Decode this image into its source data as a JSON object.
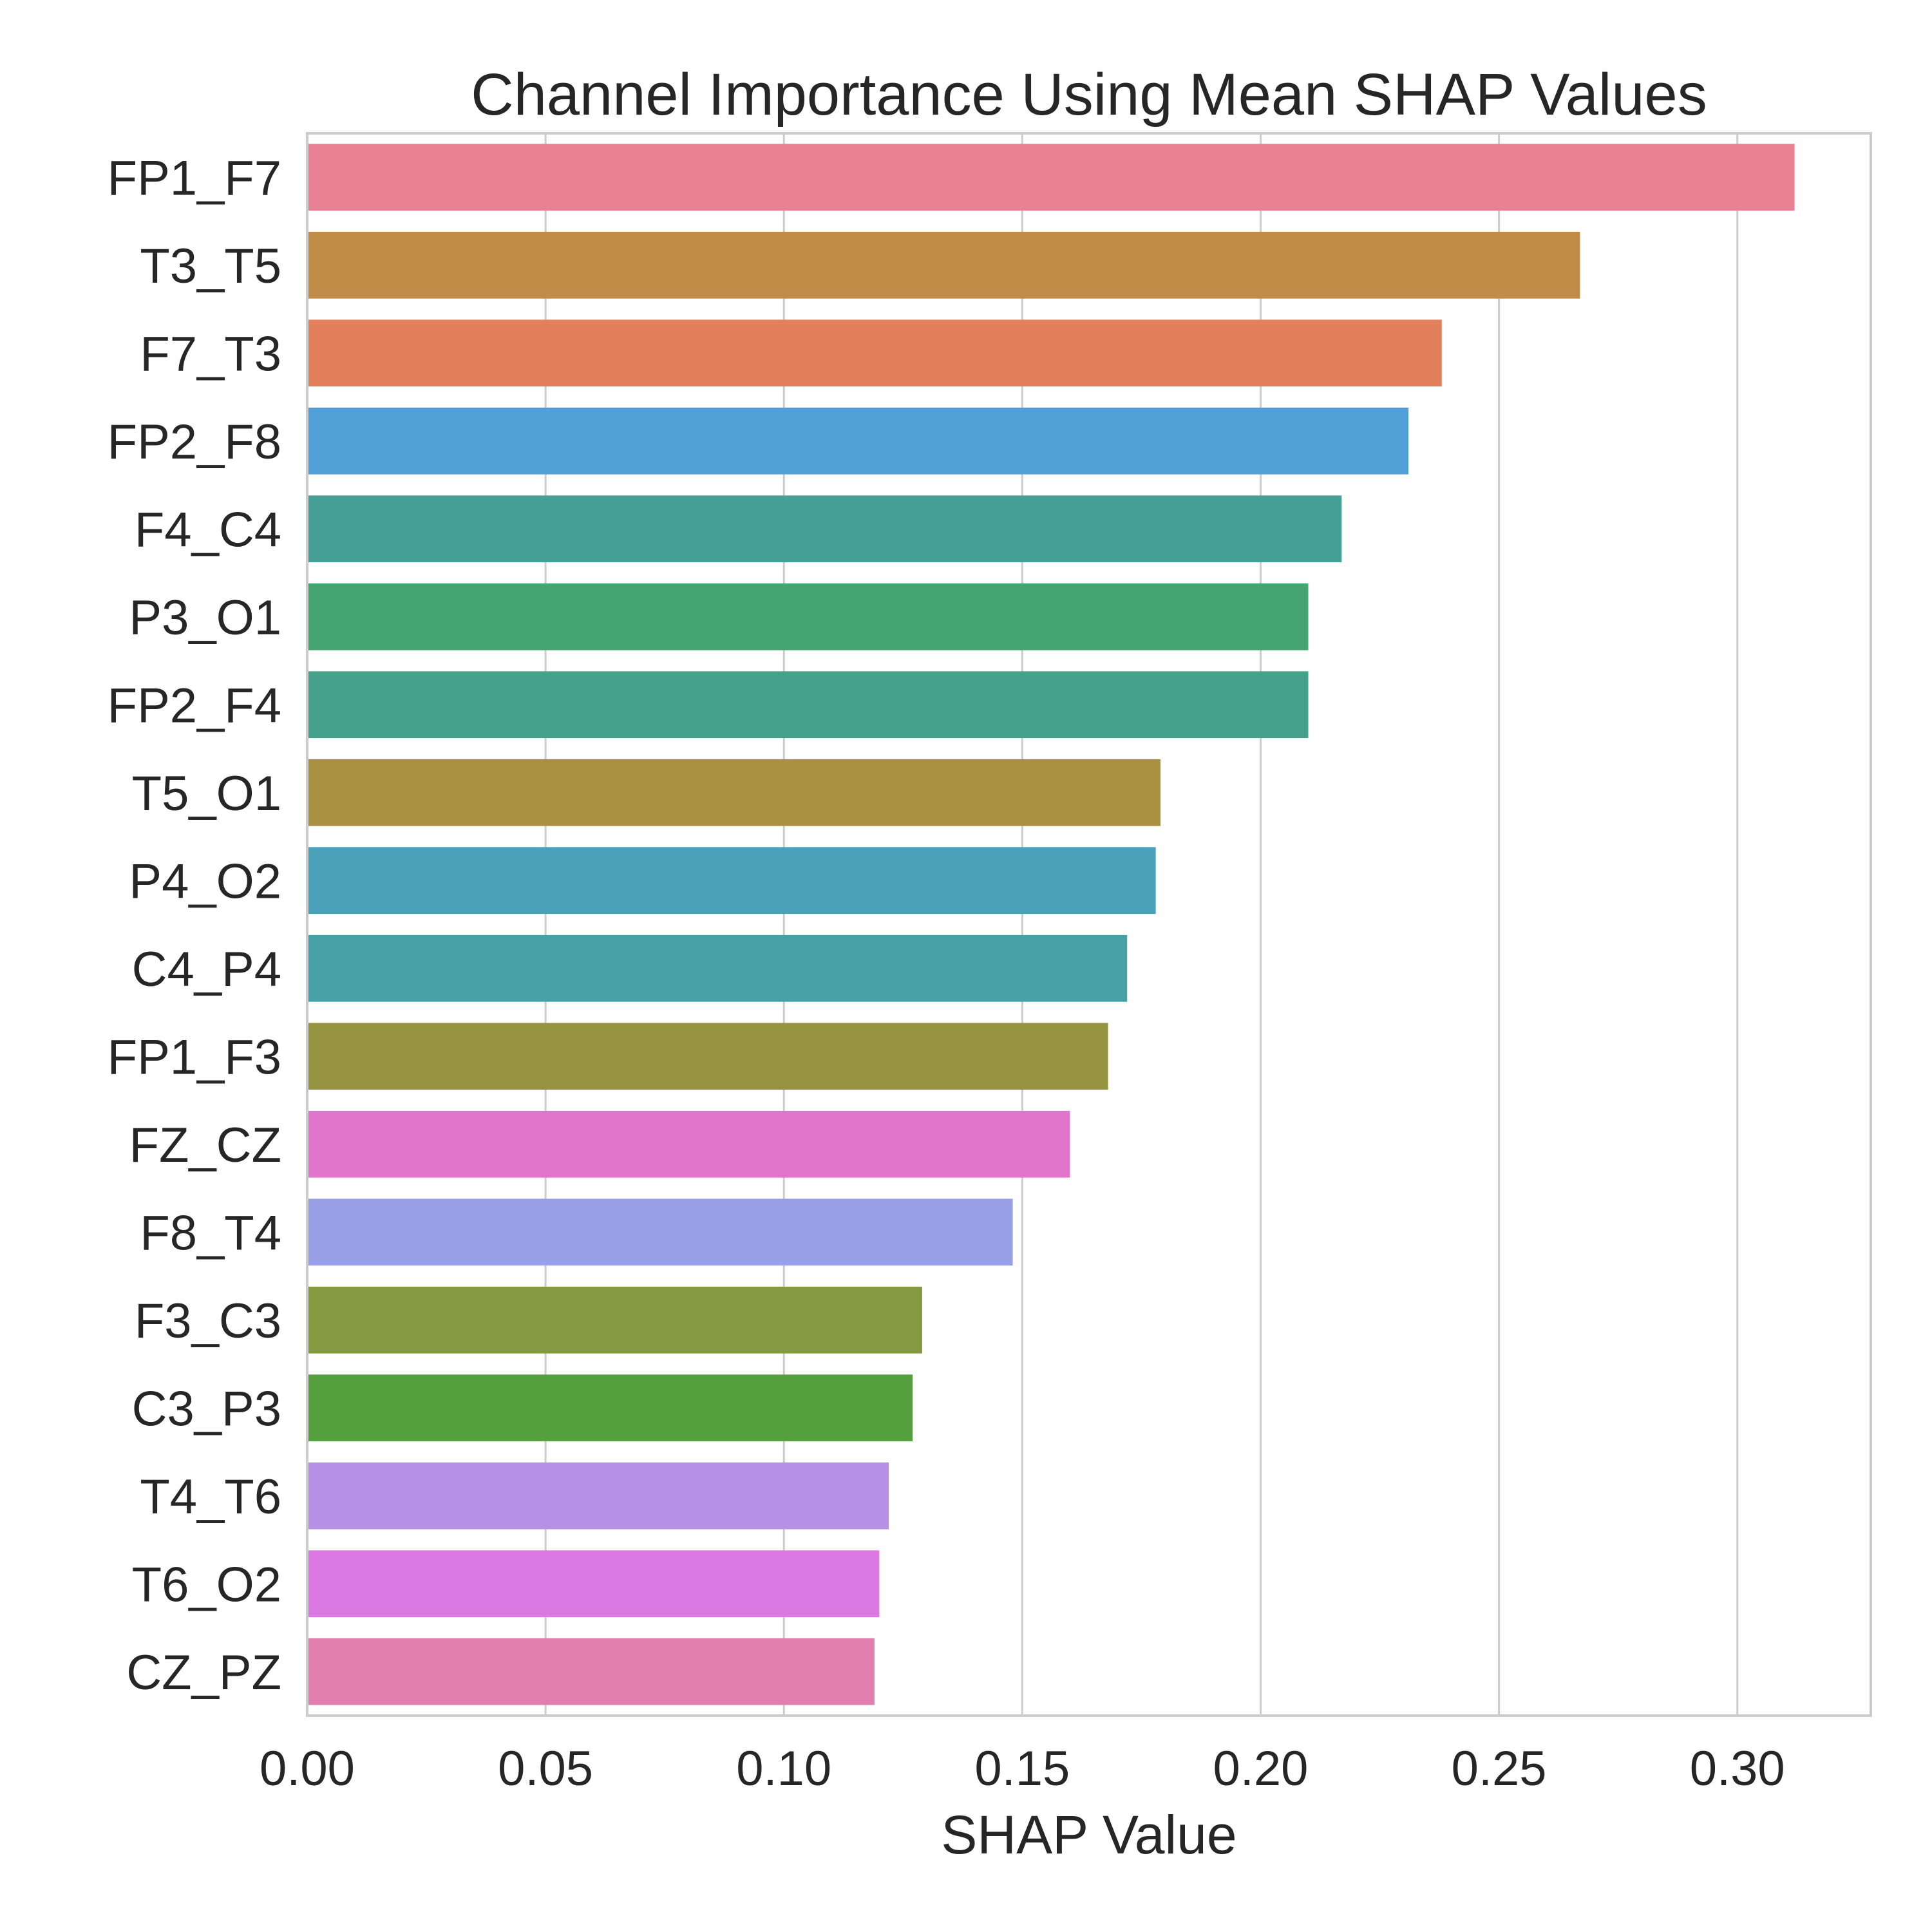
{
  "chart_data": {
    "type": "bar",
    "orientation": "horizontal",
    "title": "Channel Importance Using Mean SHAP Values",
    "xlabel": "SHAP Value",
    "ylabel": "",
    "xlim": [
      0,
      0.328
    ],
    "xticks": [
      "0.00",
      "0.05",
      "0.10",
      "0.15",
      "0.20",
      "0.25",
      "0.30"
    ],
    "grid": "vertical",
    "categories": [
      "FP1_F7",
      "T3_T5",
      "F7_T3",
      "FP2_F8",
      "F4_C4",
      "P3_O1",
      "FP2_F4",
      "T5_O1",
      "P4_O2",
      "C4_P4",
      "FP1_F3",
      "FZ_CZ",
      "F8_T4",
      "F3_C3",
      "C3_P3",
      "T4_T6",
      "T6_O2",
      "CZ_PZ"
    ],
    "values": [
      0.312,
      0.267,
      0.238,
      0.231,
      0.217,
      0.21,
      0.21,
      0.179,
      0.178,
      0.172,
      0.168,
      0.16,
      0.148,
      0.129,
      0.127,
      0.122,
      0.12,
      0.119
    ],
    "colors": [
      "#e88194",
      "#c08a47",
      "#e2805c",
      "#529fd8",
      "#46a096",
      "#45a471",
      "#45a08c",
      "#a99141",
      "#4a9fb9",
      "#46a1a6",
      "#969440",
      "#e274cc",
      "#9aa0e6",
      "#839a41",
      "#57a03f",
      "#b890e5",
      "#db78e2",
      "#e37fae"
    ]
  }
}
